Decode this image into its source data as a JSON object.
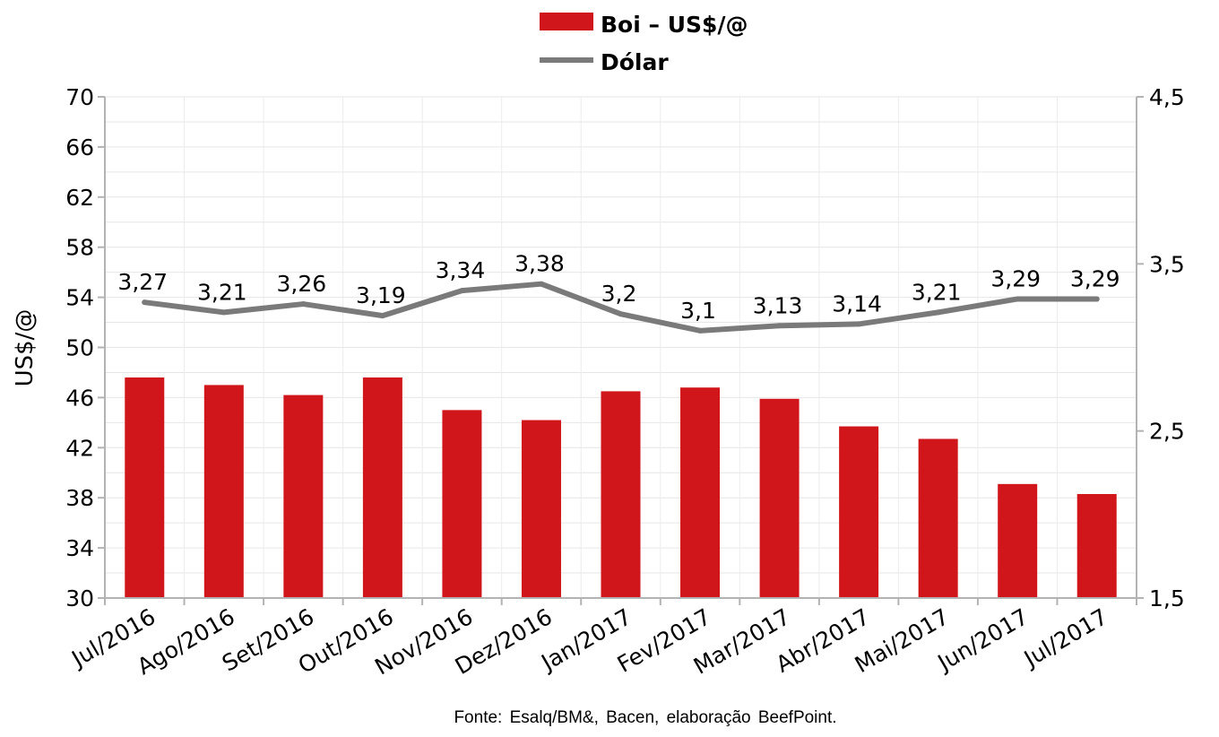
{
  "chart_data": {
    "type": "bar",
    "categories": [
      "Jul/2016",
      "Ago/2016",
      "Set/2016",
      "Out/2016",
      "Nov/2016",
      "Dez/2016",
      "Jan/2017",
      "Fev/2017",
      "Mar/2017",
      "Abr/2017",
      "Mai/2017",
      "Jun/2017",
      "Jul/2017"
    ],
    "series": [
      {
        "name": "Boi – US$/@",
        "type": "bar",
        "axis": "left",
        "color": "#d0161b",
        "values": [
          47.6,
          47.0,
          46.2,
          47.6,
          45.0,
          44.2,
          46.5,
          46.8,
          45.9,
          43.7,
          42.7,
          39.1,
          38.3
        ]
      },
      {
        "name": "Dólar",
        "type": "line",
        "axis": "right",
        "color": "#7a7a7a",
        "values": [
          3.27,
          3.21,
          3.26,
          3.19,
          3.34,
          3.38,
          3.2,
          3.1,
          3.13,
          3.14,
          3.21,
          3.29,
          3.29
        ],
        "data_labels": [
          "3,27",
          "3,21",
          "3,26",
          "3,19",
          "3,34",
          "3,38",
          "3,2",
          "3,1",
          "3,13",
          "3,14",
          "3,21",
          "3,29",
          "3,29"
        ]
      }
    ],
    "ylabel": "US$/@",
    "ylim": [
      30,
      70
    ],
    "yticks": [
      "30",
      "34",
      "38",
      "42",
      "46",
      "50",
      "54",
      "58",
      "62",
      "66",
      "70"
    ],
    "y2lim": [
      1.5,
      4.5
    ],
    "y2ticks": [
      "1,5",
      "2,5",
      "3,5",
      "4,5"
    ],
    "grid": true,
    "legend_position": "top-center"
  },
  "source": "Fonte: Esalq/BM&, Bacen, elaboração BeefPoint."
}
